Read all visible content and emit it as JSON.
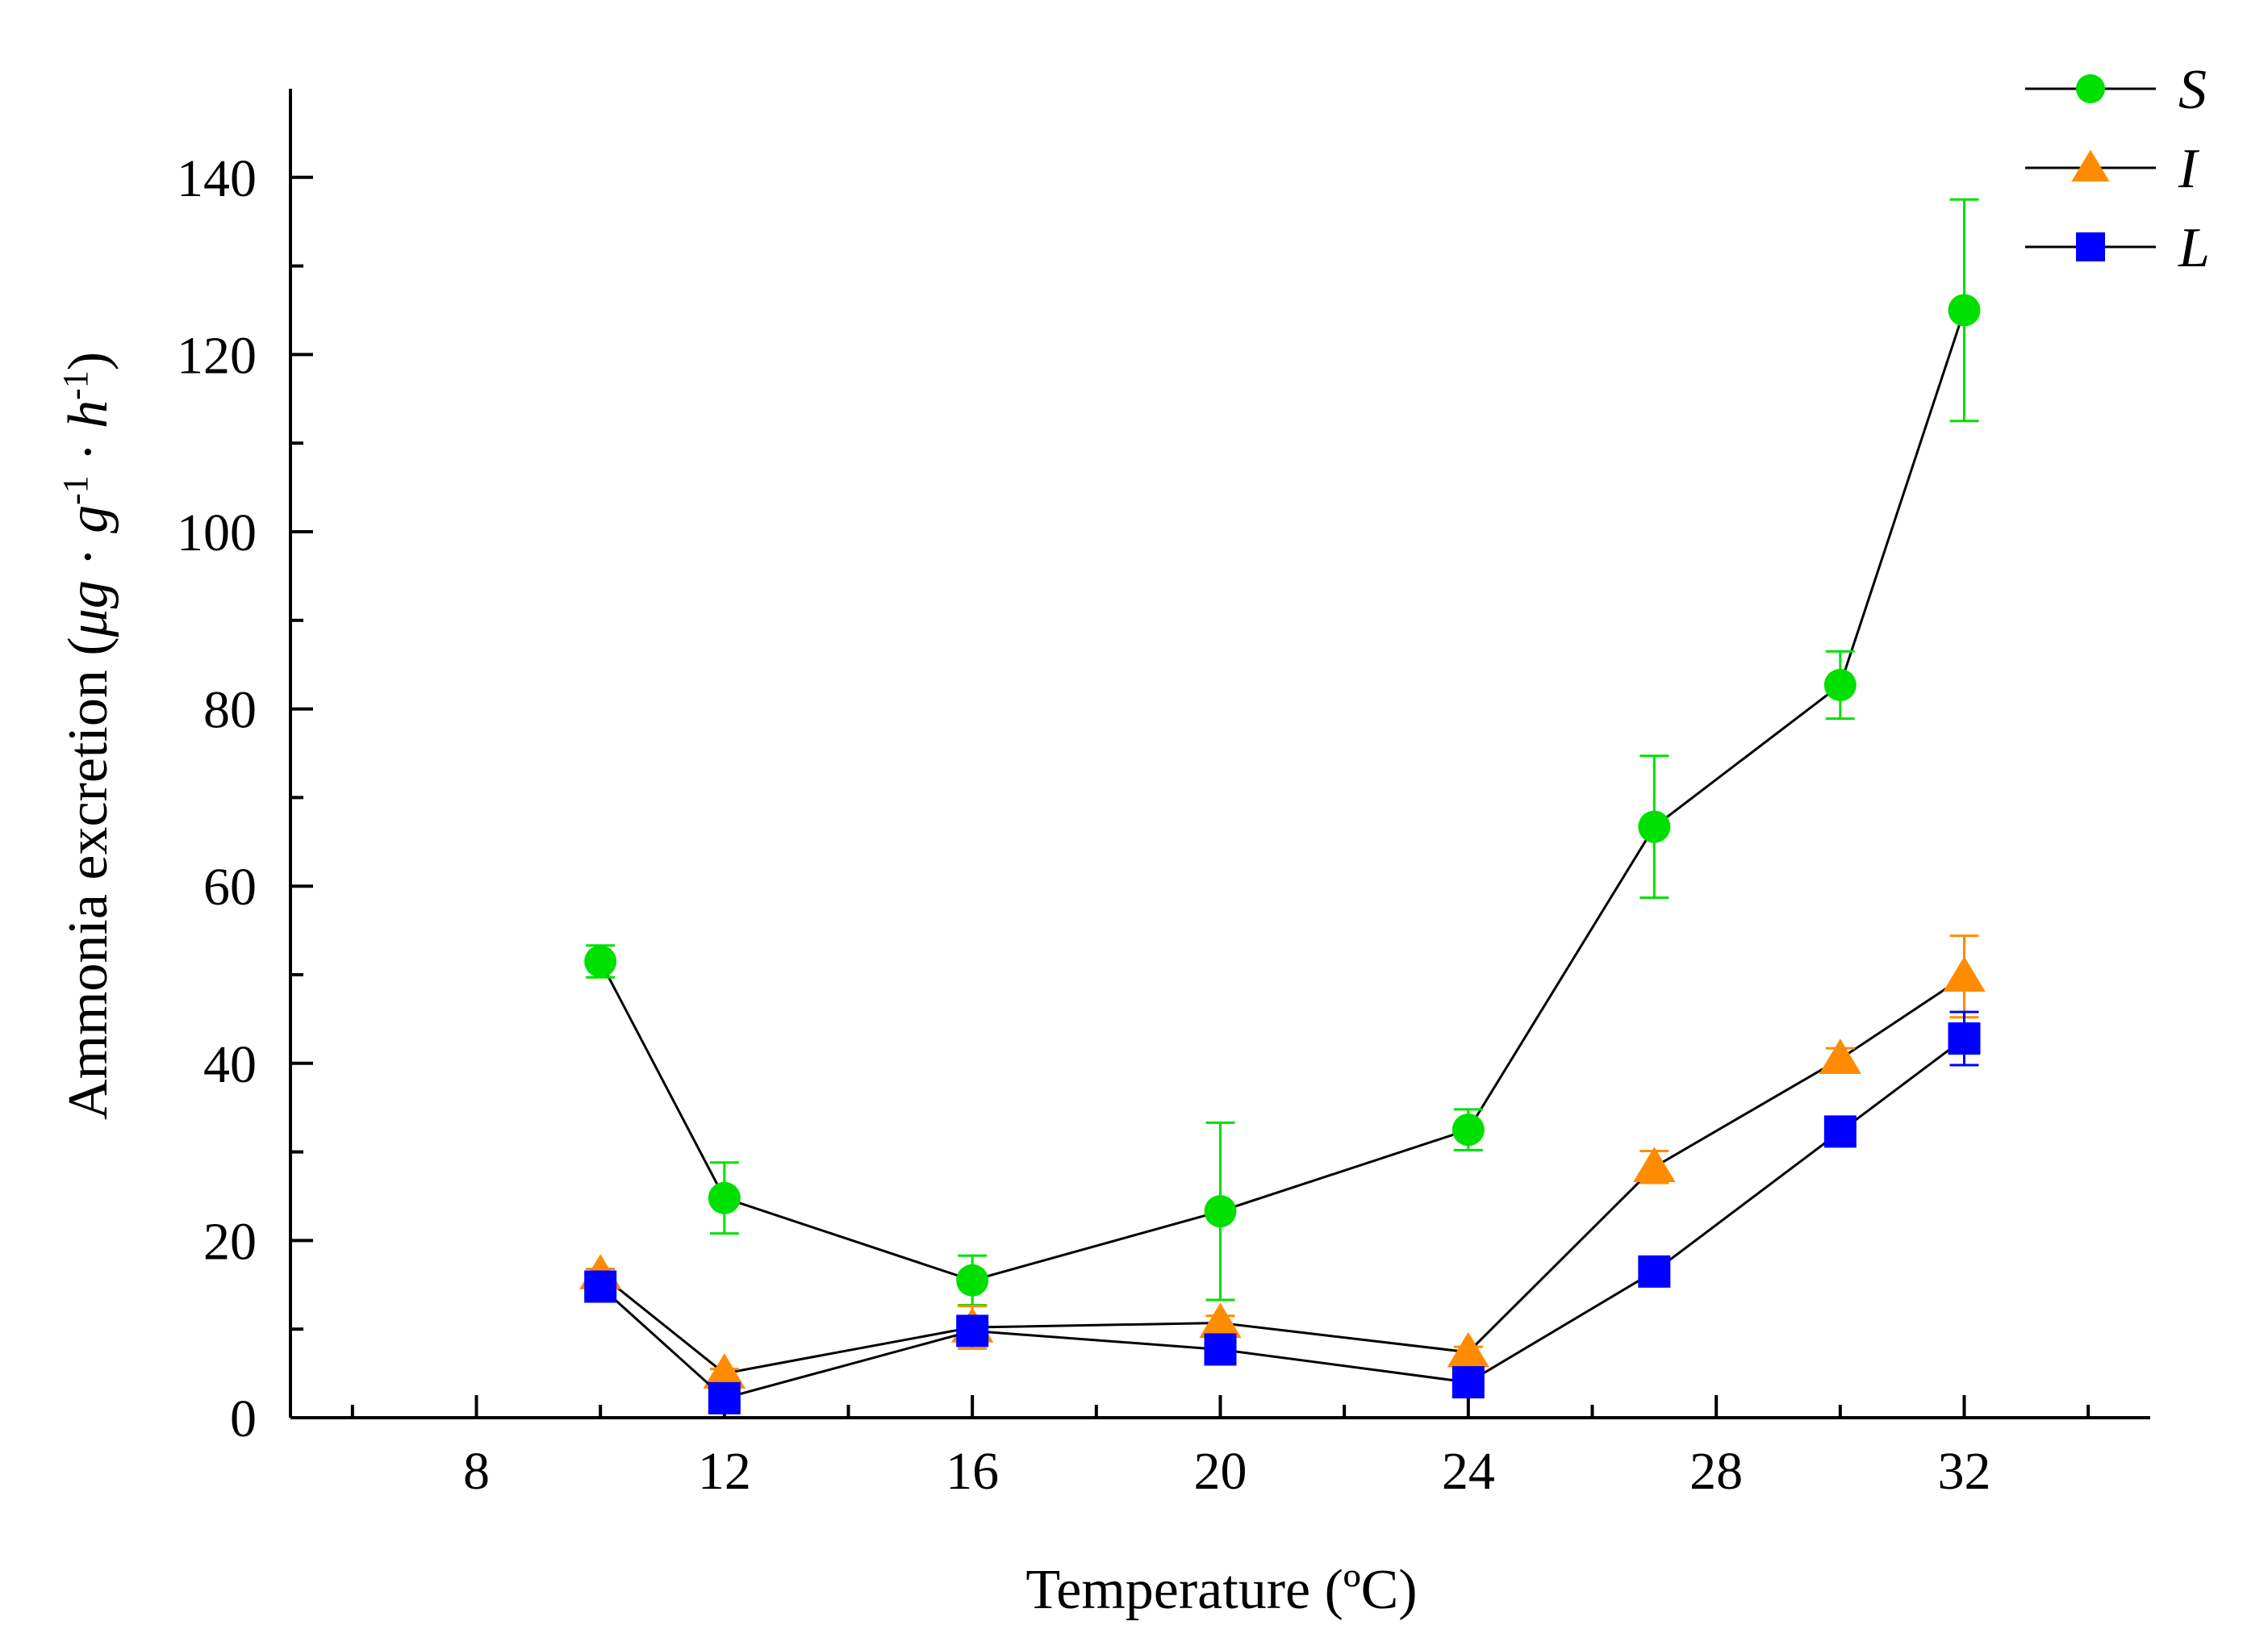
{
  "chart_data": {
    "type": "line",
    "title": "",
    "xlabel": "Temperature (ºC)",
    "ylabel_parts": {
      "prefix": "Ammonia excretion (",
      "mu": "μ",
      "g1": "g",
      "dot1": " · ",
      "g2": "g",
      "exp1": "-1",
      "dot2": " · ",
      "h": "h",
      "exp2": "-1",
      "suffix": ")"
    },
    "xlim": [
      5,
      35
    ],
    "ylim": [
      0,
      150
    ],
    "x_ticks": [
      8,
      12,
      16,
      20,
      24,
      28,
      32
    ],
    "y_ticks": [
      0,
      20,
      40,
      60,
      80,
      100,
      120,
      140
    ],
    "legend_position": "top-right",
    "series": [
      {
        "name": "S",
        "color": "#00e000",
        "marker": "circle",
        "x": [
          10,
          12,
          16,
          20,
          24,
          27,
          30,
          32
        ],
        "y": [
          51.5,
          24.8,
          15.5,
          23.3,
          32.5,
          66.7,
          82.7,
          125.0
        ],
        "err": [
          1.8,
          4.0,
          2.8,
          10.0,
          2.3,
          8.0,
          3.8,
          12.5
        ]
      },
      {
        "name": "I",
        "color": "#ff8c00",
        "marker": "triangle",
        "x": [
          10,
          12,
          16,
          20,
          24,
          27,
          30,
          32
        ],
        "y": [
          16.2,
          5.0,
          10.2,
          10.7,
          7.4,
          28.3,
          40.5,
          49.8
        ],
        "err": [
          0.6,
          0.5,
          2.4,
          0.8,
          0.6,
          1.8,
          1.2,
          4.6
        ]
      },
      {
        "name": "L",
        "color": "#0000ff",
        "marker": "square",
        "x": [
          10,
          12,
          16,
          20,
          24,
          27,
          30,
          32
        ],
        "y": [
          14.8,
          2.2,
          9.8,
          7.7,
          4.0,
          16.5,
          32.3,
          42.8
        ],
        "err": [
          1.6,
          0.6,
          0.8,
          0.5,
          0.5,
          1.0,
          1.0,
          3.0
        ]
      }
    ]
  }
}
